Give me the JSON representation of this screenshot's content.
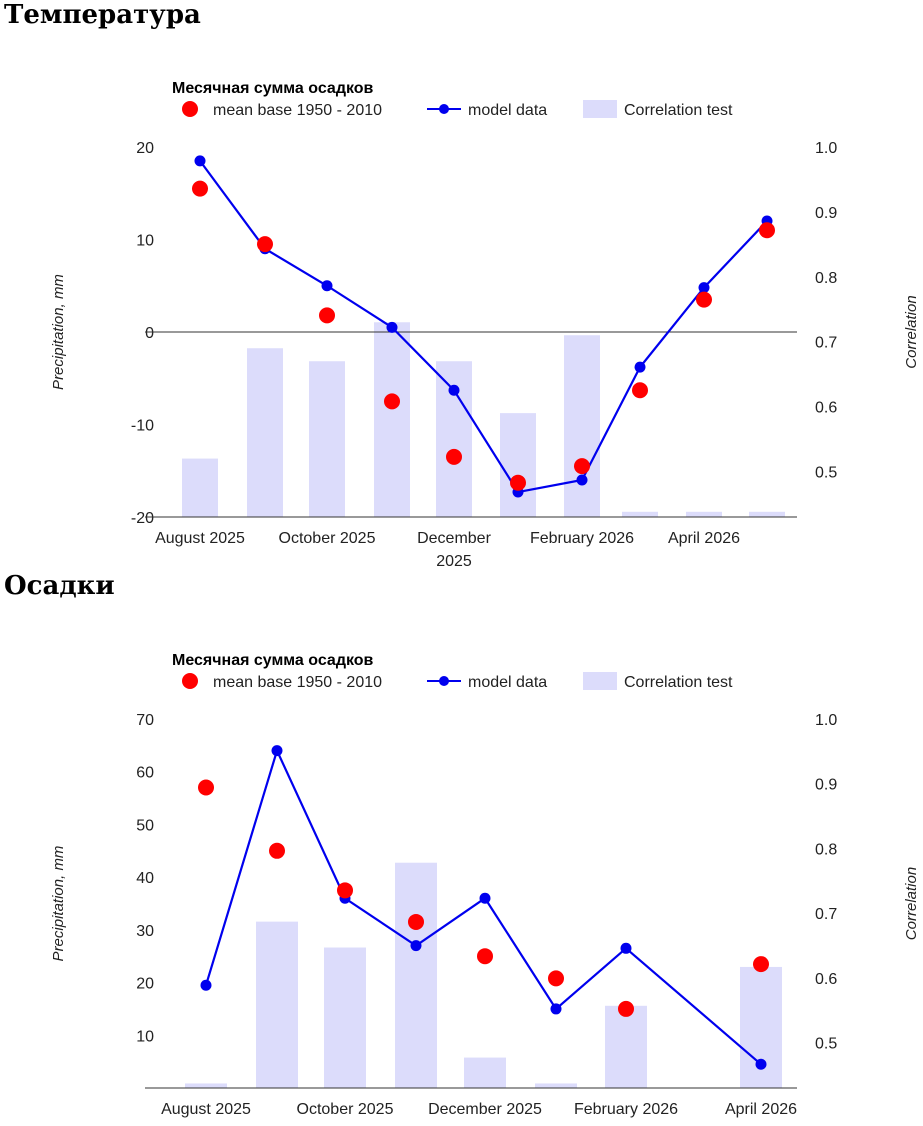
{
  "sections": [
    {
      "title": "Температура"
    },
    {
      "title": "Осадки"
    }
  ],
  "colors": {
    "mean": "#ff0000",
    "model": "#0000ee",
    "correlation": "#dcdcfb",
    "axis": "#333333",
    "text": "#222222"
  },
  "chart_data": [
    {
      "type": "bar+line+scatter",
      "title": "Месячная сумма осадков",
      "legend": [
        "mean base 1950 - 2010",
        "model data",
        "Correlation test"
      ],
      "ylabel": "Precipitation, mm",
      "y2label": "Correlation",
      "ylim": [
        -20,
        20
      ],
      "yticks": [
        "20",
        "10",
        "0",
        "-10",
        "-20"
      ],
      "y2lim": [
        0.43,
        1.0
      ],
      "y2ticks": [
        "1.0",
        "0.9",
        "0.8",
        "0.7",
        "0.6",
        "0.5"
      ],
      "xticks": [
        "August 2025",
        "October 2025",
        "December 2025",
        "February 2026",
        "April 2026"
      ],
      "series": [
        {
          "name": "mean base 1950 - 2010",
          "kind": "scatter",
          "values": [
            15.5,
            9.5,
            1.8,
            -7.5,
            -13.5,
            -16.3,
            -14.5,
            -6.3,
            3.5,
            11.0
          ]
        },
        {
          "name": "model data",
          "kind": "line",
          "values": [
            18.5,
            9.0,
            5.0,
            0.5,
            -6.3,
            -17.3,
            -16.0,
            -3.8,
            4.8,
            12.0
          ]
        },
        {
          "name": "Correlation test",
          "kind": "bar",
          "values": [
            0.52,
            0.69,
            0.67,
            0.73,
            0.67,
            0.59,
            0.71,
            0.438,
            0.438,
            0.438
          ]
        }
      ]
    },
    {
      "type": "bar+line+scatter",
      "title": "Месячная сумма осадков",
      "legend": [
        "mean base 1950 - 2010",
        "model data",
        "Correlation test"
      ],
      "ylabel": "Precipitation, mm",
      "y2label": "Correlation",
      "ylim": [
        0,
        70
      ],
      "yticks": [
        "70",
        "60",
        "50",
        "40",
        "30",
        "20",
        "10"
      ],
      "y2lim": [
        0.43,
        1.0
      ],
      "y2ticks": [
        "1.0",
        "0.9",
        "0.8",
        "0.7",
        "0.6",
        "0.5"
      ],
      "xticks": [
        "August 2025",
        "October 2025",
        "December 2025",
        "February 2026",
        "April 2026"
      ],
      "series": [
        {
          "name": "mean base 1950 - 2010",
          "kind": "scatter",
          "values": [
            57,
            45,
            37.5,
            31.5,
            25,
            20.8,
            15,
            null,
            23.5
          ]
        },
        {
          "name": "model data",
          "kind": "line",
          "values": [
            19.5,
            64,
            36,
            27,
            36,
            15,
            26.5,
            null,
            4.5
          ]
        },
        {
          "name": "Correlation test",
          "kind": "bar",
          "values": [
            0.437,
            0.687,
            0.647,
            0.778,
            0.477,
            0.437,
            0.557,
            null,
            0.617
          ]
        }
      ]
    }
  ]
}
